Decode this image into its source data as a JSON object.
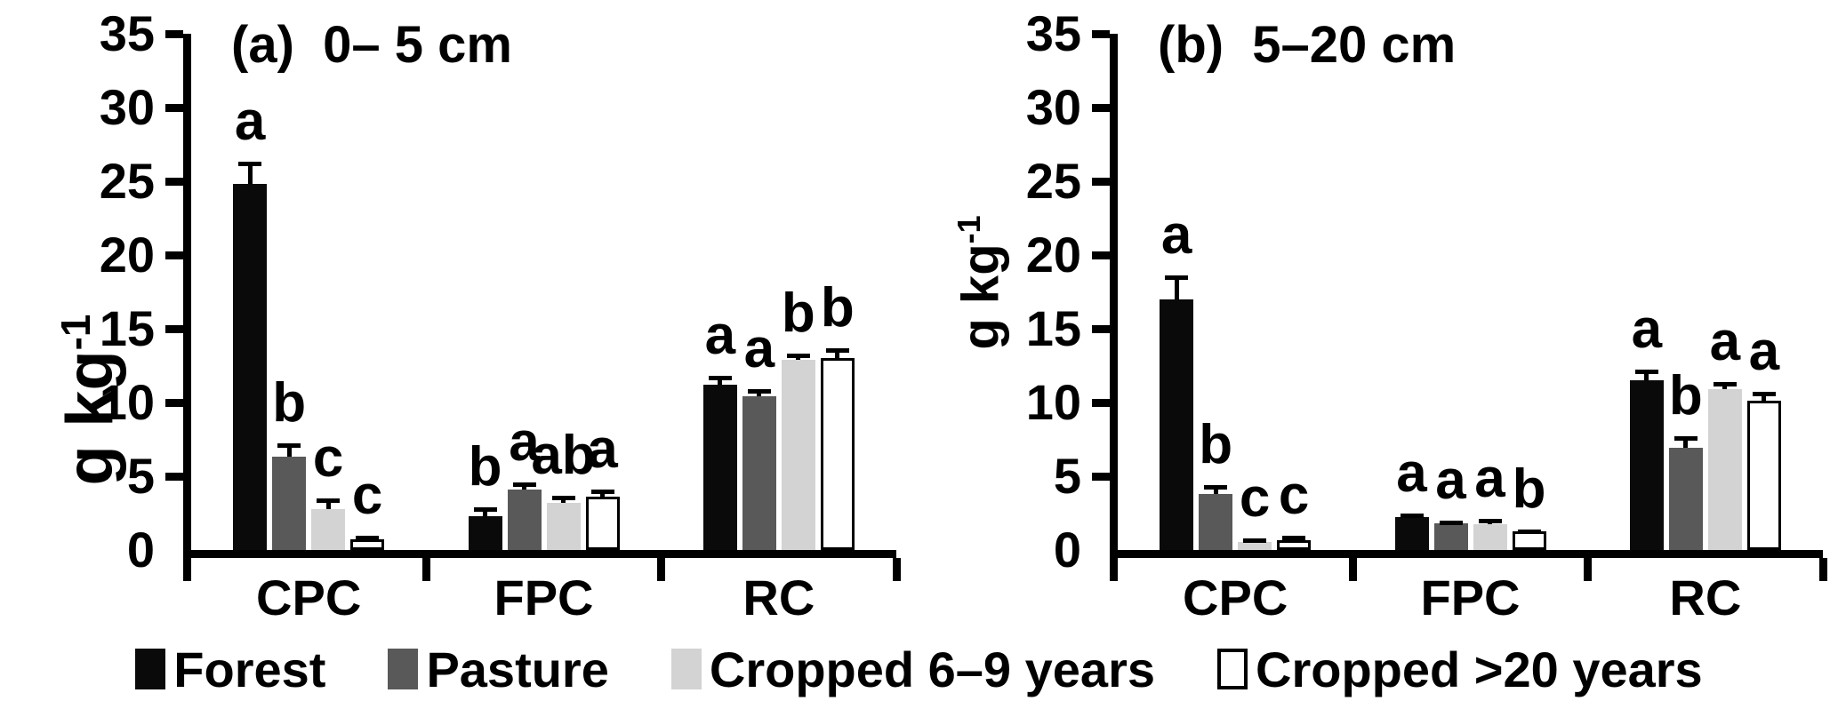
{
  "figure": {
    "background": "#ffffff",
    "text_color": "#000000",
    "units": "g kg-1"
  },
  "legend": {
    "items": [
      {
        "label": "Forest",
        "color": "#0a0a0a",
        "border": false
      },
      {
        "label": "Pasture",
        "color": "#595959",
        "border": false
      },
      {
        "label": "Cropped 6–9 years",
        "color": "#d3d3d3",
        "border": false
      },
      {
        "label": "Cropped >20 years",
        "color": "#ffffff",
        "border": true
      }
    ]
  },
  "chart_data": [
    {
      "type": "bar",
      "panel": "a",
      "title": "(a)  0– 5 cm",
      "ylabel": "g kg",
      "ylabel_sup": "-1",
      "ylim": [
        0,
        35
      ],
      "ytick_step": 5,
      "yticks": [
        35,
        30,
        25,
        20,
        15,
        10,
        5,
        0
      ],
      "grid": false,
      "categories": [
        "CPC",
        "FPC",
        "RC"
      ],
      "series": [
        {
          "name": "Forest",
          "color": "#0a0a0a",
          "values": [
            24.8,
            2.3,
            11.2
          ],
          "errors": [
            1.5,
            0.6,
            0.6
          ],
          "letters": [
            "a",
            "b",
            "a"
          ]
        },
        {
          "name": "Pasture",
          "color": "#595959",
          "values": [
            6.3,
            4.1,
            10.4
          ],
          "errors": [
            0.9,
            0.5,
            0.5
          ],
          "letters": [
            "b",
            "a",
            "a"
          ]
        },
        {
          "name": "Cropped 6–9 years",
          "color": "#d3d3d3",
          "values": [
            2.8,
            3.2,
            12.9
          ],
          "errors": [
            0.7,
            0.5,
            0.4
          ],
          "letters": [
            "c",
            "ab",
            "b"
          ]
        },
        {
          "name": "Cropped >20 years",
          "color": "#ffffff",
          "values": [
            0.7,
            3.6,
            13.0
          ],
          "errors": [
            0.25,
            0.5,
            0.7
          ],
          "letters": [
            "c",
            "a",
            "b"
          ]
        }
      ]
    },
    {
      "type": "bar",
      "panel": "b",
      "title": "(b)  5–20 cm",
      "ylabel": "g kg",
      "ylabel_sup": "-1",
      "ylim": [
        0,
        35
      ],
      "ytick_step": 5,
      "yticks": [
        35,
        30,
        25,
        20,
        15,
        10,
        5,
        0
      ],
      "grid": false,
      "categories": [
        "CPC",
        "FPC",
        "RC"
      ],
      "series": [
        {
          "name": "Forest",
          "color": "#0a0a0a",
          "values": [
            17.0,
            2.2,
            11.5
          ],
          "errors": [
            1.6,
            0.3,
            0.7
          ],
          "letters": [
            "a",
            "a",
            "a"
          ]
        },
        {
          "name": "Pasture",
          "color": "#595959",
          "values": [
            3.8,
            1.8,
            6.9
          ],
          "errors": [
            0.6,
            0.2,
            0.8
          ],
          "letters": [
            "b",
            "a",
            "b"
          ]
        },
        {
          "name": "Cropped 6–9 years",
          "color": "#d3d3d3",
          "values": [
            0.55,
            1.75,
            10.9
          ],
          "errors": [
            0.25,
            0.35,
            0.5
          ],
          "letters": [
            "c",
            "a",
            "a"
          ]
        },
        {
          "name": "Cropped >20 years",
          "color": "#ffffff",
          "values": [
            0.65,
            1.25,
            10.1
          ],
          "errors": [
            0.3,
            0.15,
            0.6
          ],
          "letters": [
            "c",
            "b",
            "a"
          ]
        }
      ]
    }
  ]
}
